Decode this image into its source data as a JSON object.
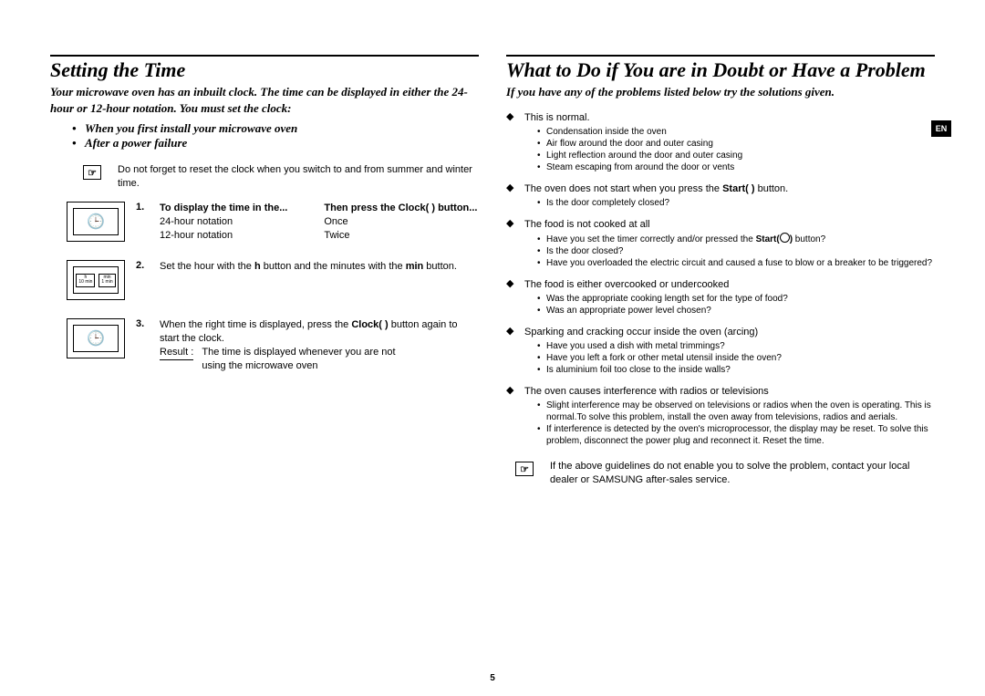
{
  "left": {
    "title": "Setting the Time",
    "intro": "Your microwave oven has an inbuilt clock. The time can be displayed in either the 24-hour or 12-hour notation. You must set the clock:",
    "intro_bullets": [
      "When you first install your microwave oven",
      "After a power failure"
    ],
    "note": "Do not forget to reset the clock when you switch to and from summer and winter time.",
    "step1": {
      "num": "1.",
      "col1_h": "To display the time in the...",
      "col2_h": "Then press the Clock(     ) button...",
      "r1c1": "24-hour notation",
      "r1c2": "Once",
      "r2c1": "12-hour notation",
      "r2c2": "Twice"
    },
    "step2": {
      "num": "2.",
      "text_a": "Set the hour with the ",
      "h": "h",
      "text_b": " button and the minutes with the ",
      "min": "min",
      "text_c": " button."
    },
    "step3": {
      "num": "3.",
      "text_a": "When the right time is displayed, press the ",
      "clock": "Clock(   )",
      "text_b": " button again to start the clock.",
      "result_label": "Result :",
      "result_text": "The time is displayed whenever you are not using the microwave oven"
    },
    "btn_h": "h",
    "btn_min": "min",
    "btn_10min": "10 min",
    "btn_1min": "1 min"
  },
  "right": {
    "title": "What to Do if You are in Doubt or Have a Problem",
    "intro": "If you have any of the problems listed below try the solutions given.",
    "problems": [
      {
        "head": "This is normal.",
        "items": [
          "Condensation inside the oven",
          "Air flow around the door and outer casing",
          "Light reflection around the door and outer casing",
          "Steam escaping from around the door or vents"
        ]
      },
      {
        "head_a": "The oven does not start when you press the ",
        "head_b": "Start(   )",
        "head_c": " button.",
        "items": [
          "Is the door completely closed?"
        ]
      },
      {
        "head": "The food is not cooked at all",
        "items_html": [
          "Have you set the timer correctly and/or pressed the <b>Start(<span class=\"circ\"></span>)</b> button?",
          "Is the door closed?",
          "Have you overloaded the electric circuit and caused a fuse to blow or a breaker to be triggered?"
        ]
      },
      {
        "head": "The food is either overcooked or undercooked",
        "items": [
          "Was the appropriate cooking length set for the type of food?",
          "Was an appropriate power level chosen?"
        ]
      },
      {
        "head": "Sparking and cracking occur inside the oven (arcing)",
        "items": [
          "Have you used a dish with metal trimmings?",
          "Have you left a fork or other metal utensil inside the oven?",
          "Is aluminium foil too close to the inside walls?"
        ]
      },
      {
        "head": "The oven causes interference with radios or televisions",
        "items": [
          "Slight interference may be observed on televisions or radios when the oven is operating. This is normal.To solve this problem, install the oven away from televisions, radios and aerials.",
          "If interference is detected by the oven's microprocessor, the display may be reset. To solve this problem, disconnect the power plug and reconnect it. Reset the time."
        ]
      }
    ],
    "final_note": "If the above guidelines do not enable you to solve the problem, contact your local dealer or SAMSUNG after-sales service."
  },
  "lang_tab": "EN",
  "page_number": "5"
}
